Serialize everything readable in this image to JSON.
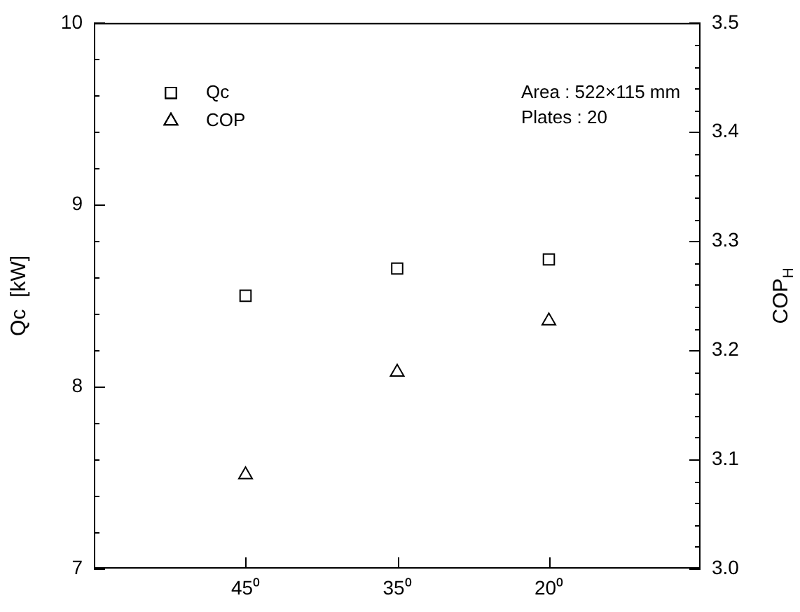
{
  "chart_data": {
    "type": "scatter",
    "ylabel": "Qc  [kW]",
    "y2label": "COP$_{H}$",
    "categories": [
      null,
      "45⁰",
      "35⁰",
      "20⁰",
      null
    ],
    "series": [
      {
        "name": "Qc",
        "color": "#000000",
        "marker": "square",
        "values": [
          null,
          8.5,
          8.65,
          8.7,
          null
        ]
      },
      {
        "name": "COP",
        "color": "#000000",
        "marker": "triangle",
        "axis": "y2",
        "values": [
          null,
          3.086,
          3.18,
          3.227,
          null
        ]
      }
    ],
    "ylim": [
      7,
      10
    ],
    "yticks": [
      7,
      {
        "value": 7.2,
        "label": null
      },
      {
        "value": 7.4,
        "label": null
      },
      {
        "value": 7.6,
        "label": null
      },
      {
        "value": 7.8,
        "label": null
      },
      8,
      {
        "value": 8.2,
        "label": null
      },
      {
        "value": 8.4,
        "label": null
      },
      {
        "value": 8.6,
        "label": null
      },
      {
        "value": 8.8,
        "label": null
      },
      9,
      {
        "value": 9.2,
        "label": null
      },
      {
        "value": 9.4,
        "label": null
      },
      {
        "value": 9.6,
        "label": null
      },
      {
        "value": 9.8,
        "label": null
      },
      10
    ],
    "y2lim": [
      3.0,
      3.5
    ],
    "y2ticks": [
      {
        "value": 3.0,
        "label": "3.0"
      },
      {
        "value": 3.02,
        "label": null
      },
      {
        "value": 3.04,
        "label": null
      },
      {
        "value": 3.06,
        "label": null
      },
      {
        "value": 3.08,
        "label": null
      },
      {
        "value": 3.1,
        "label": "3.1"
      },
      {
        "value": 3.12,
        "label": null
      },
      {
        "value": 3.14,
        "label": null
      },
      {
        "value": 3.16,
        "label": null
      },
      {
        "value": 3.18,
        "label": null
      },
      {
        "value": 3.2,
        "label": "3.2"
      },
      {
        "value": 3.22,
        "label": null
      },
      {
        "value": 3.24,
        "label": null
      },
      {
        "value": 3.26,
        "label": null
      },
      {
        "value": 3.28,
        "label": null
      },
      {
        "value": 3.3,
        "label": "3.3"
      },
      {
        "value": 3.32,
        "label": null
      },
      {
        "value": 3.34,
        "label": null
      },
      {
        "value": 3.36,
        "label": null
      },
      {
        "value": 3.38,
        "label": null
      },
      {
        "value": 3.4,
        "label": "3.4"
      },
      {
        "value": 3.42,
        "label": null
      },
      {
        "value": 3.44,
        "label": null
      },
      {
        "value": 3.46,
        "label": null
      },
      {
        "value": 3.48,
        "label": null
      },
      {
        "value": 3.5,
        "label": "3.5"
      }
    ],
    "annotations": [
      "Area : 522×115 mm",
      "Plates : 20"
    ],
    "legend": "top left",
    "grid": false
  }
}
